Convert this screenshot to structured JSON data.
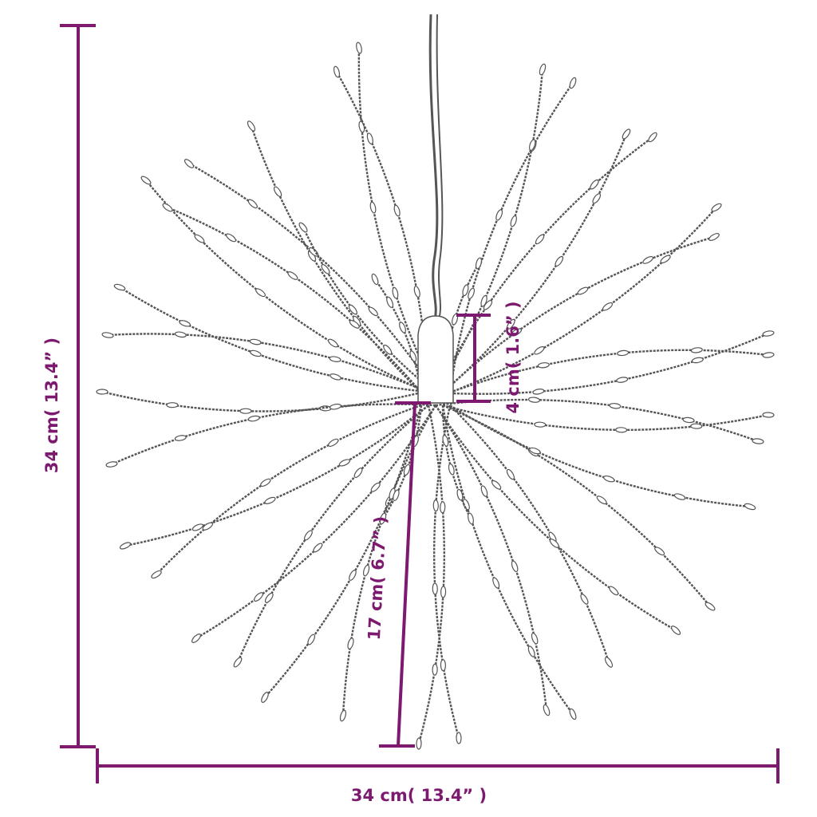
{
  "dimensions": {
    "height_label": "34 cm( 13.4” )",
    "width_label": "34 cm( 13.4” )",
    "cap_label": "4 cm( 1.6” )",
    "strand_label": "17 cm( 6.7” )"
  },
  "colors": {
    "dimension": "#7d1a70",
    "strand": "#555555"
  }
}
